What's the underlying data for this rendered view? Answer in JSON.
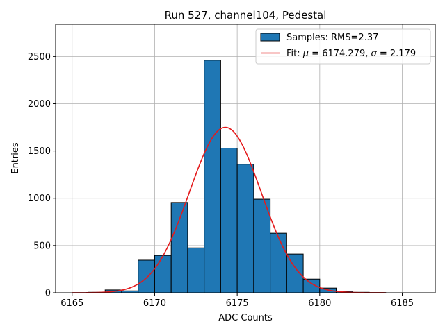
{
  "chart_data": {
    "type": "bar",
    "title": "Run 527, channel104, Pedestal",
    "xlabel": "ADC Counts",
    "ylabel": "Entries",
    "xlim": [
      6164.0,
      6187.0
    ],
    "ylim": [
      0,
      2840
    ],
    "xticks": [
      6165,
      6170,
      6175,
      6180,
      6185
    ],
    "yticks": [
      0,
      500,
      1000,
      1500,
      2000,
      2500
    ],
    "grid": true,
    "legend": {
      "placement": "top-right"
    },
    "histogram": {
      "name": "Samples: RMS=2.37",
      "color": "#1f77b4",
      "bin_edges": [
        6166,
        6167,
        6168,
        6169,
        6170,
        6171,
        6172,
        6173,
        6174,
        6175,
        6176,
        6177,
        6178,
        6179,
        6180,
        6181,
        6182,
        6183,
        6184
      ],
      "counts": [
        5,
        30,
        20,
        345,
        395,
        955,
        475,
        2460,
        1530,
        1360,
        990,
        630,
        410,
        145,
        50,
        15,
        5,
        2
      ]
    },
    "fit": {
      "name_prefix": "Fit: ",
      "mu_symbol": "μ",
      "mu_value": " = 6174.279, ",
      "sigma_symbol": "σ",
      "sigma_value": " = 2.179",
      "color": "#e41a1c",
      "mu": 6174.279,
      "sigma": 2.179,
      "amplitude": 1750,
      "x_range": [
        6165,
        6184
      ]
    }
  }
}
